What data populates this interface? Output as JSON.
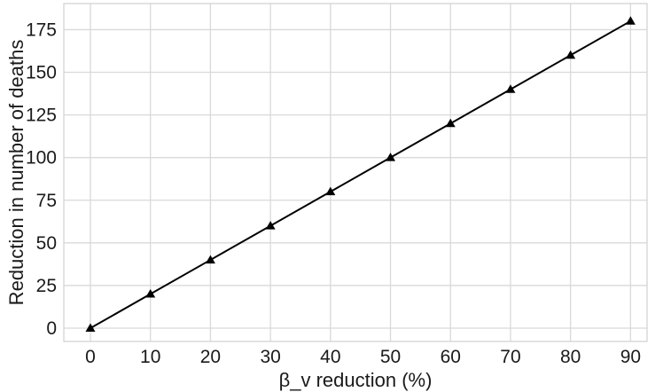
{
  "chart_data": {
    "type": "line",
    "title": "",
    "xlabel": "β_v reduction (%)",
    "ylabel": "Reduction in number of deaths",
    "x": [
      0,
      10,
      20,
      30,
      40,
      50,
      60,
      70,
      80,
      90
    ],
    "series": [
      {
        "name": "reduction-in-deaths",
        "values": [
          0,
          20,
          40,
          60,
          80,
          100,
          120,
          140,
          160,
          180
        ],
        "color": "#000000",
        "marker": "triangle-up"
      }
    ],
    "xticks": [
      0,
      10,
      20,
      30,
      40,
      50,
      60,
      70,
      80,
      90
    ],
    "yticks": [
      0,
      25,
      50,
      75,
      100,
      125,
      150,
      175
    ],
    "xlim": [
      -4.43,
      92.75
    ],
    "ylim": [
      -7.8,
      190.3
    ],
    "grid": true,
    "legend": false,
    "colors": {
      "background": "#ffffff",
      "grid": "#d9d9d9",
      "border": "#d4d4d4",
      "text": "#1a1a1a",
      "line": "#000000"
    }
  }
}
